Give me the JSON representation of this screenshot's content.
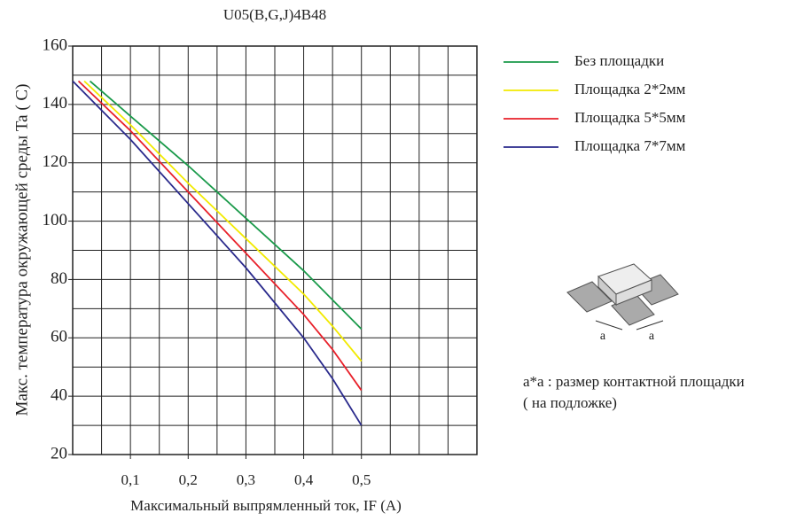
{
  "chart_data": {
    "type": "line",
    "title": "U05(B,G,J)4B48",
    "x_label": "Максимальный выпрямленный ток, IF (A)",
    "y_label": "Макс.  температура окружающей среды Ta ( C)",
    "xlim": [
      0,
      0.7
    ],
    "xticks": [
      {
        "value": 0.1,
        "label": "0,1"
      },
      {
        "value": 0.2,
        "label": "0,2"
      },
      {
        "value": 0.3,
        "label": "0,3"
      },
      {
        "value": 0.4,
        "label": "0,4"
      },
      {
        "value": 0.5,
        "label": "0,5"
      }
    ],
    "xgrid": [
      0.05,
      0.1,
      0.15,
      0.2,
      0.25,
      0.3,
      0.35,
      0.4,
      0.45,
      0.5,
      0.55,
      0.6,
      0.65
    ],
    "ylim": [
      20,
      160
    ],
    "yticks": [
      20,
      40,
      60,
      80,
      100,
      120,
      140,
      160
    ],
    "ygrid": [
      30,
      40,
      50,
      60,
      70,
      80,
      90,
      100,
      110,
      120,
      130,
      140,
      150
    ],
    "grid": true,
    "series": [
      {
        "name": "Без площадки",
        "color": "#1a9a4a",
        "x": [
          0.03,
          0.1,
          0.2,
          0.3,
          0.4,
          0.45,
          0.5
        ],
        "values": [
          148,
          136,
          119,
          101,
          83,
          73,
          63
        ]
      },
      {
        "name": "Площадка 2*2мм",
        "color": "#f2ea00",
        "x": [
          0.02,
          0.1,
          0.2,
          0.3,
          0.4,
          0.45,
          0.5
        ],
        "values": [
          148,
          133,
          113,
          94,
          75,
          64,
          52
        ]
      },
      {
        "name": "Площадка 5*5мм",
        "color": "#e8202a",
        "x": [
          0.01,
          0.1,
          0.2,
          0.3,
          0.4,
          0.45,
          0.5
        ],
        "values": [
          148,
          131,
          110,
          89,
          68,
          56,
          42
        ]
      },
      {
        "name": "Площадка 7*7мм",
        "color": "#2a2a8c",
        "x": [
          0,
          0.1,
          0.2,
          0.3,
          0.4,
          0.45,
          0.5
        ],
        "values": [
          148,
          128,
          106,
          84,
          60,
          46,
          30
        ]
      }
    ],
    "inset": {
      "side_labels": [
        "a",
        "a"
      ],
      "caption": [
        "a*a : размер контактной площадки",
        "( на подложке)"
      ]
    }
  }
}
